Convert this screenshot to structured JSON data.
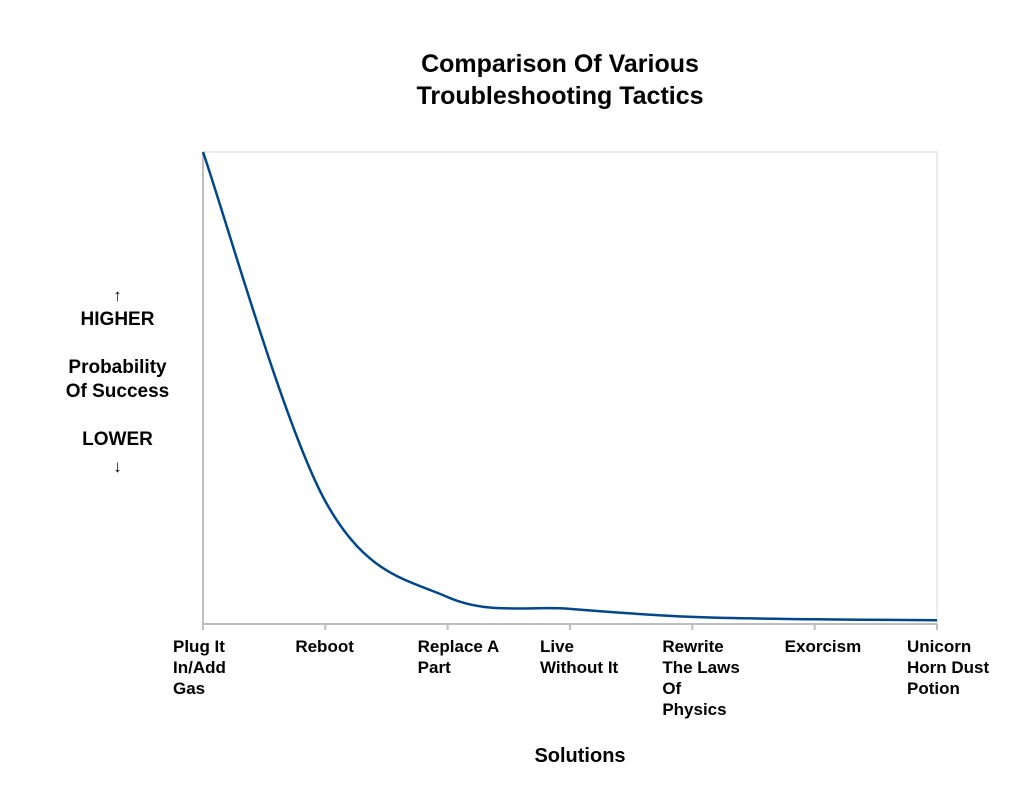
{
  "chart_data": {
    "type": "line",
    "title": "Comparison Of Various\nTroubleshooting Tactics",
    "xlabel": "Solutions",
    "ylabel": "Probability Of Success",
    "y_high_label": "HIGHER",
    "y_low_label": "LOWER",
    "y_up_arrow": "↑",
    "y_down_arrow": "↓",
    "categories": [
      "Plug It In/Add Gas",
      "Reboot",
      "Replace A Part",
      "Live Without It",
      "Rewrite The Laws Of Physics",
      "Exorcism",
      "Unicorn Horn Dust Potion"
    ],
    "category_display": [
      "Plug It\nIn/Add\nGas",
      "Reboot",
      "Replace A\nPart",
      "Live\nWithout It",
      "Rewrite\nThe Laws\nOf\nPhysics",
      "Exorcism",
      "Unicorn\nHorn Dust\nPotion"
    ],
    "values": [
      100,
      26,
      5.7,
      3.2,
      1.5,
      1,
      0.8
    ],
    "ylim": [
      0,
      100
    ],
    "y_ticks_shown": false,
    "grid": false,
    "smooth": true,
    "line_color": "#00468b",
    "axis_color": "#bfbfbf"
  }
}
